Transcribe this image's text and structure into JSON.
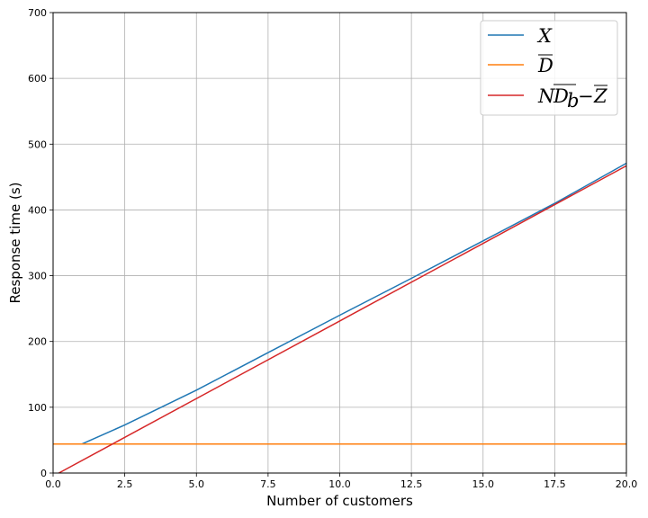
{
  "chart_data": {
    "type": "line",
    "title": "",
    "xlabel": "Number of customers",
    "ylabel": "Response time (s)",
    "xlim": [
      0,
      20
    ],
    "ylim": [
      0,
      700
    ],
    "xticks": [
      0,
      2.5,
      5,
      7.5,
      10,
      12.5,
      15,
      17.5,
      20
    ],
    "xtick_labels": [
      "0.0",
      "2.5",
      "5.0",
      "7.5",
      "10.0",
      "12.5",
      "15.0",
      "17.5",
      "20.0"
    ],
    "yticks": [
      0,
      100,
      200,
      300,
      400,
      500,
      600,
      700
    ],
    "ytick_labels": [
      "0",
      "100",
      "200",
      "300",
      "400",
      "500",
      "600",
      "700"
    ],
    "grid": true,
    "legend_position": "top-right",
    "series": [
      {
        "name": "X",
        "color": "#1f77b4",
        "x": [
          1,
          2.5,
          5,
          7.5,
          10,
          12.5,
          15,
          17.5,
          20
        ],
        "y": [
          44,
          73,
          126,
          183,
          240,
          296,
          353,
          410,
          471
        ]
      },
      {
        "name": "D̄",
        "color": "#ff7f0e",
        "x": [
          0,
          20
        ],
        "y": [
          44,
          44
        ]
      },
      {
        "name": "ND̄_b − Z̄",
        "color": "#d62728",
        "x": [
          0.2,
          20
        ],
        "y": [
          0,
          467
        ]
      }
    ]
  }
}
